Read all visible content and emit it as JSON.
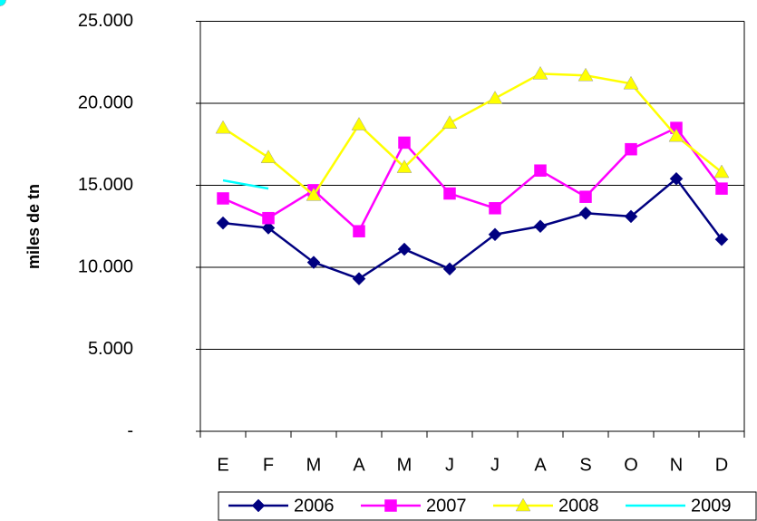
{
  "chart_data": {
    "type": "line",
    "y_label": "miles de tn",
    "categories": [
      "E",
      "F",
      "M",
      "A",
      "M",
      "J",
      "J",
      "A",
      "S",
      "O",
      "N",
      "D"
    ],
    "series": [
      {
        "name": "2006",
        "color": "#000080",
        "marker": "diamond",
        "values": [
          12700,
          12400,
          10300,
          9300,
          11100,
          9900,
          12000,
          12500,
          13300,
          13100,
          15400,
          11700
        ]
      },
      {
        "name": "2007",
        "color": "#ff00ff",
        "marker": "square",
        "values": [
          14200,
          13000,
          14700,
          12200,
          17600,
          14500,
          13600,
          15900,
          14300,
          17200,
          18500,
          14800
        ]
      },
      {
        "name": "2008",
        "color": "#ffff00",
        "marker": "triangle",
        "values": [
          18500,
          16700,
          14400,
          18700,
          16100,
          18800,
          20300,
          21800,
          21700,
          21200,
          18000,
          15800
        ]
      },
      {
        "name": "2009",
        "color": "#00ffff",
        "marker": "circle",
        "values": [
          15300,
          14800,
          null,
          null,
          null,
          null,
          null,
          null,
          null,
          null,
          null,
          null
        ]
      }
    ],
    "ylim": [
      0,
      25000
    ],
    "yticks": [
      {
        "value": 0,
        "label": "-"
      },
      {
        "value": 5000,
        "label": "5.000"
      },
      {
        "value": 10000,
        "label": "10.000"
      },
      {
        "value": 15000,
        "label": "15.000"
      },
      {
        "value": 20000,
        "label": "20.000"
      },
      {
        "value": 25000,
        "label": "25.000"
      }
    ],
    "grid": true,
    "legend": "bottom"
  }
}
